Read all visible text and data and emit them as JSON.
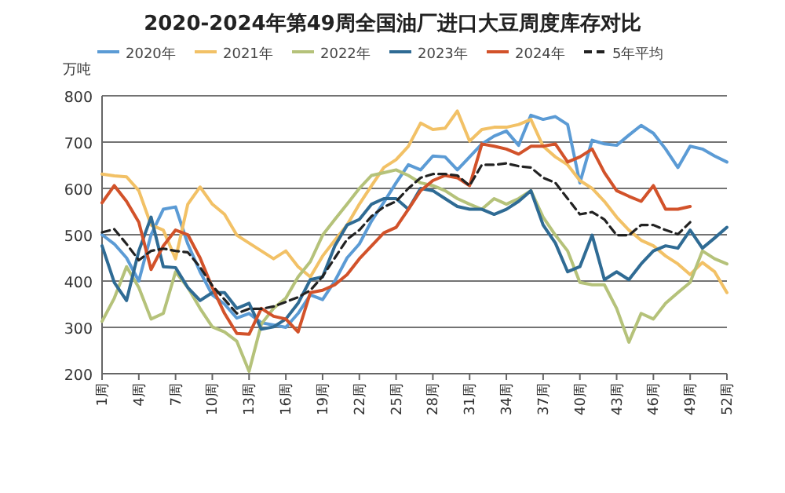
{
  "chart_data": {
    "type": "line",
    "title": "2020-2024年第49周全国油厂进口大豆周度库存对比",
    "ylabel": "万吨",
    "categories": [
      "1周",
      null,
      null,
      "4周",
      null,
      null,
      "7周",
      null,
      null,
      "10周",
      null,
      null,
      "13周",
      null,
      null,
      "16周",
      null,
      null,
      "19周",
      null,
      null,
      "22周",
      null,
      null,
      "25周",
      null,
      null,
      "28周",
      null,
      null,
      "31周",
      null,
      null,
      "34周",
      null,
      null,
      "37周",
      null,
      null,
      "40周",
      null,
      null,
      "43周",
      null,
      null,
      "46周",
      null,
      null,
      "49周",
      null,
      null,
      "52周"
    ],
    "ylim": [
      200,
      800
    ],
    "yticks": [
      200,
      300,
      400,
      500,
      600,
      700,
      800
    ],
    "grid": "y",
    "legend": "top",
    "marker": "none",
    "series": [
      {
        "name": "2020年",
        "color": "#5b9bd5",
        "line_style": "solid",
        "values": [
          500,
          480,
          450,
          400,
          500,
          555,
          560,
          480,
          420,
          370,
          350,
          320,
          330,
          310,
          305,
          300,
          330,
          370,
          360,
          400,
          450,
          480,
          530,
          570,
          612,
          651,
          640,
          670,
          668,
          640,
          668,
          696,
          713,
          724,
          693,
          758,
          749,
          755,
          738,
          612,
          704,
          696,
          693,
          715,
          736,
          719,
          685,
          645,
          691,
          685,
          670,
          657
        ]
      },
      {
        "name": "2021年",
        "color": "#f2c166",
        "line_style": "solid",
        "values": [
          631,
          627,
          625,
          595,
          521,
          510,
          448,
          566,
          603,
          566,
          544,
          499,
          482,
          465,
          448,
          465,
          431,
          409,
          454,
          488,
          521,
          566,
          606,
          645,
          662,
          691,
          741,
          727,
          730,
          767,
          702,
          727,
          732,
          732,
          738,
          749,
          691,
          668,
          651,
          617,
          600,
          572,
          538,
          510,
          488,
          476,
          454,
          437,
          414,
          440,
          420,
          375
        ]
      },
      {
        "name": "2022年",
        "color": "#b5c27a",
        "line_style": "solid",
        "values": [
          313,
          363,
          431,
          386,
          318,
          330,
          420,
          386,
          341,
          301,
          290,
          270,
          205,
          307,
          341,
          363,
          409,
          442,
          499,
          533,
          566,
          600,
          628,
          634,
          640,
          628,
          612,
          606,
          595,
          578,
          566,
          555,
          578,
          566,
          578,
          595,
          538,
          499,
          465,
          397,
          392,
          392,
          341,
          268,
          330,
          318,
          352,
          375,
          397,
          465,
          448,
          437
        ]
      },
      {
        "name": "2023年",
        "color": "#2f6b94",
        "line_style": "solid",
        "values": [
          476,
          397,
          358,
          465,
          538,
          431,
          429,
          386,
          358,
          375,
          375,
          341,
          352,
          296,
          301,
          318,
          352,
          403,
          409,
          476,
          521,
          533,
          566,
          578,
          578,
          555,
          600,
          595,
          578,
          561,
          555,
          555,
          544,
          555,
          572,
          595,
          521,
          482,
          420,
          431,
          499,
          403,
          420,
          403,
          437,
          465,
          476,
          471,
          510,
          471,
          493,
          516
        ]
      },
      {
        "name": "2024年",
        "color": "#d2522a",
        "line_style": "solid",
        "values": [
          569,
          606,
          572,
          527,
          425,
          476,
          510,
          500,
          450,
          386,
          330,
          287,
          285,
          341,
          324,
          318,
          290,
          375,
          380,
          392,
          414,
          448,
          476,
          504,
          516,
          555,
          595,
          617,
          628,
          623,
          606,
          696,
          691,
          685,
          674,
          691,
          691,
          696,
          657,
          668,
          685,
          634,
          595,
          583,
          572,
          606,
          555,
          555,
          561,
          null,
          null,
          null
        ]
      },
      {
        "name": "5年平均",
        "color": "#222222",
        "line_style": "dashed",
        "values": [
          505,
          512,
          480,
          445,
          465,
          470,
          465,
          462,
          430,
          390,
          360,
          330,
          340,
          340,
          345,
          355,
          365,
          380,
          410,
          450,
          490,
          510,
          540,
          560,
          572,
          600,
          623,
          631,
          631,
          628,
          606,
          651,
          651,
          654,
          648,
          645,
          623,
          612,
          578,
          544,
          549,
          533,
          499,
          499,
          521,
          521,
          510,
          501,
          527,
          null,
          null,
          null
        ]
      }
    ]
  }
}
